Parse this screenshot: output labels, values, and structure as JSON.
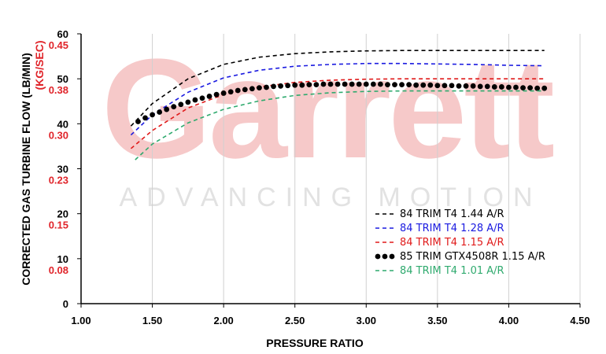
{
  "watermark": {
    "brand": "Garrett",
    "tagline": "ADVANCING MOTION",
    "brand_color": "#f6c9c9",
    "tagline_color": "#e2e2e2"
  },
  "chart_data": {
    "type": "line",
    "xlabel": "PRESSURE RATIO",
    "ylabel": "CORRECTED GAS TURBINE FLOW (LB/MIN)",
    "ylabel_secondary": "(KG/SEC)",
    "xlim": [
      1.0,
      4.5
    ],
    "ylim": [
      0,
      60
    ],
    "grid": "vertical",
    "legend_position": "bottom-right",
    "x_ticks": [
      "1.00",
      "1.50",
      "2.00",
      "2.50",
      "3.00",
      "3.50",
      "4.00",
      "4.50"
    ],
    "y_ticks": [
      "0",
      "10",
      "20",
      "30",
      "40",
      "50",
      "60"
    ],
    "y_ticks_secondary": [
      {
        "at": 10,
        "label": "0.08"
      },
      {
        "at": 20,
        "label": "0.15"
      },
      {
        "at": 30,
        "label": "0.23"
      },
      {
        "at": 40,
        "label": "0.30"
      },
      {
        "at": 50,
        "label": "0.38"
      },
      {
        "at": 60,
        "label": "0.45"
      }
    ],
    "secondary_color": "#e0242a",
    "series": [
      {
        "name": "84 TRIM T4 1.44 A/R",
        "color": "#000000",
        "style": "dashed",
        "x": [
          1.35,
          1.5,
          1.75,
          2.0,
          2.25,
          2.5,
          2.75,
          3.0,
          3.25,
          3.5,
          3.75,
          4.0,
          4.25
        ],
        "y": [
          39.5,
          44.5,
          50.0,
          53.2,
          54.8,
          55.6,
          56.0,
          56.2,
          56.3,
          56.3,
          56.3,
          56.3,
          56.3
        ]
      },
      {
        "name": "84 TRIM T4 1.28 A/R",
        "color": "#1a1ae0",
        "style": "dashed",
        "x": [
          1.35,
          1.5,
          1.75,
          2.0,
          2.25,
          2.5,
          2.75,
          3.0,
          3.25,
          3.5,
          3.75,
          4.0,
          4.25
        ],
        "y": [
          37.5,
          42.0,
          47.0,
          50.2,
          51.9,
          52.8,
          53.2,
          53.4,
          53.4,
          53.3,
          53.2,
          53.0,
          52.9
        ]
      },
      {
        "name": "84 TRIM T4 1.15 A/R",
        "color": "#e01a1a",
        "style": "dashed",
        "x": [
          1.35,
          1.5,
          1.75,
          2.0,
          2.25,
          2.5,
          2.75,
          3.0,
          3.25,
          3.5,
          3.75,
          4.0,
          4.25
        ],
        "y": [
          34.5,
          38.5,
          43.5,
          46.5,
          48.2,
          49.2,
          49.7,
          49.9,
          50.0,
          50.0,
          50.0,
          50.0,
          50.0
        ]
      },
      {
        "name": "85 TRIM GTX4508R 1.15 A/R",
        "color": "#000000",
        "style": "dots",
        "x": [
          1.4,
          1.45,
          1.5,
          1.55,
          1.6,
          1.65,
          1.7,
          1.75,
          1.8,
          1.85,
          1.9,
          1.95,
          2.0,
          2.05,
          2.1,
          2.15,
          2.2,
          2.25,
          2.3,
          2.35,
          2.4,
          2.45,
          2.5,
          2.55,
          2.6,
          2.65,
          2.7,
          2.75,
          2.8,
          2.85,
          2.9,
          2.95,
          3.0,
          3.05,
          3.1,
          3.15,
          3.2,
          3.25,
          3.3,
          3.35,
          3.4,
          3.45,
          3.5,
          3.55,
          3.6,
          3.65,
          3.7,
          3.75,
          3.8,
          3.85,
          3.9,
          3.95,
          4.0,
          4.05,
          4.1,
          4.15,
          4.2,
          4.25
        ],
        "y": [
          40.5,
          41.3,
          42.0,
          42.6,
          43.2,
          43.8,
          44.3,
          44.8,
          45.3,
          45.7,
          46.1,
          46.5,
          46.8,
          47.1,
          47.4,
          47.6,
          47.8,
          48.0,
          48.1,
          48.3,
          48.4,
          48.5,
          48.6,
          48.6,
          48.7,
          48.7,
          48.8,
          48.8,
          48.8,
          48.8,
          48.8,
          48.8,
          48.8,
          48.8,
          48.8,
          48.7,
          48.7,
          48.7,
          48.7,
          48.6,
          48.6,
          48.6,
          48.5,
          48.5,
          48.5,
          48.4,
          48.4,
          48.4,
          48.3,
          48.3,
          48.2,
          48.2,
          48.1,
          48.1,
          48.0,
          48.0,
          47.9,
          47.9
        ]
      },
      {
        "name": "84 TRIM T4 1.01 A/R",
        "color": "#2faa6e",
        "style": "dashed",
        "x": [
          1.38,
          1.5,
          1.75,
          2.0,
          2.25,
          2.5,
          2.75,
          3.0,
          3.25,
          3.5,
          3.75,
          4.0,
          4.25
        ],
        "y": [
          32.0,
          35.5,
          40.2,
          43.2,
          45.1,
          46.3,
          46.9,
          47.2,
          47.3,
          47.3,
          47.3,
          47.3,
          47.3
        ]
      }
    ]
  }
}
